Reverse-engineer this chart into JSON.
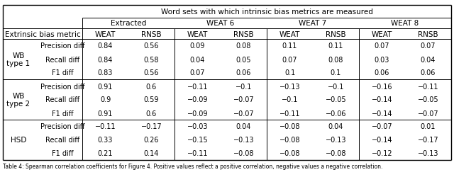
{
  "title_row": "Word sets with which intrinsic bias metrics are measured",
  "col_groups": [
    "Extracted",
    "WEAT 6",
    "WEAT 7",
    "WEAT 8"
  ],
  "sub_cols": [
    "WEAT",
    "RNSB"
  ],
  "row_groups": [
    "WB\ntype 1",
    "WB\ntype 2",
    "HSD"
  ],
  "row_labels": [
    [
      "Precision diff",
      "Recall diff",
      "F1 diff"
    ],
    [
      "Precision diff",
      "Recall diff",
      "F1 diff"
    ],
    [
      "Precision diff",
      "Recall diff",
      "F1 diff"
    ]
  ],
  "left_col_label": "Extrinsic bias metric",
  "data": [
    [
      "0.84",
      "0.56",
      "0.09",
      "0.08",
      "0.11",
      "0.11",
      "0.07",
      "0.07"
    ],
    [
      "0.84",
      "0.58",
      "0.04",
      "0.05",
      "0.07",
      "0.08",
      "0.03",
      "0.04"
    ],
    [
      "0.83",
      "0.56",
      "0.07",
      "0.06",
      "0.1",
      "0.1",
      "0.06",
      "0.06"
    ],
    [
      "0.91",
      "0.6",
      "−0.11",
      "−0.1",
      "−0.13",
      "−0.1",
      "−0.16",
      "−0.11"
    ],
    [
      "0.9",
      "0.59",
      "−0.09",
      "−0.07",
      "−0.1",
      "−0.05",
      "−0.14",
      "−0.05"
    ],
    [
      "0.91",
      "0.6",
      "−0.09",
      "−0.07",
      "−0.11",
      "−0.06",
      "−0.14",
      "−0.07"
    ],
    [
      "−0.11",
      "−0.17",
      "−0.03",
      "0.04",
      "−0.08",
      "0.04",
      "−0.07",
      "0.01"
    ],
    [
      "0.33",
      "0.26",
      "−0.15",
      "−0.13",
      "−0.08",
      "−0.13",
      "−0.14",
      "−0.17"
    ],
    [
      "0.21",
      "0.14",
      "−0.11",
      "−0.08",
      "−0.08",
      "−0.08",
      "−0.12",
      "−0.13"
    ]
  ],
  "caption": "Table 4: Spearman correlation coefficients for Figure 4. Positive values reflect a positive correlation, negative values a negative correlation.",
  "bg_color": "#ffffff",
  "line_color": "#000000",
  "fs_data": 7.0,
  "fs_header": 7.5,
  "fs_caption": 5.5
}
